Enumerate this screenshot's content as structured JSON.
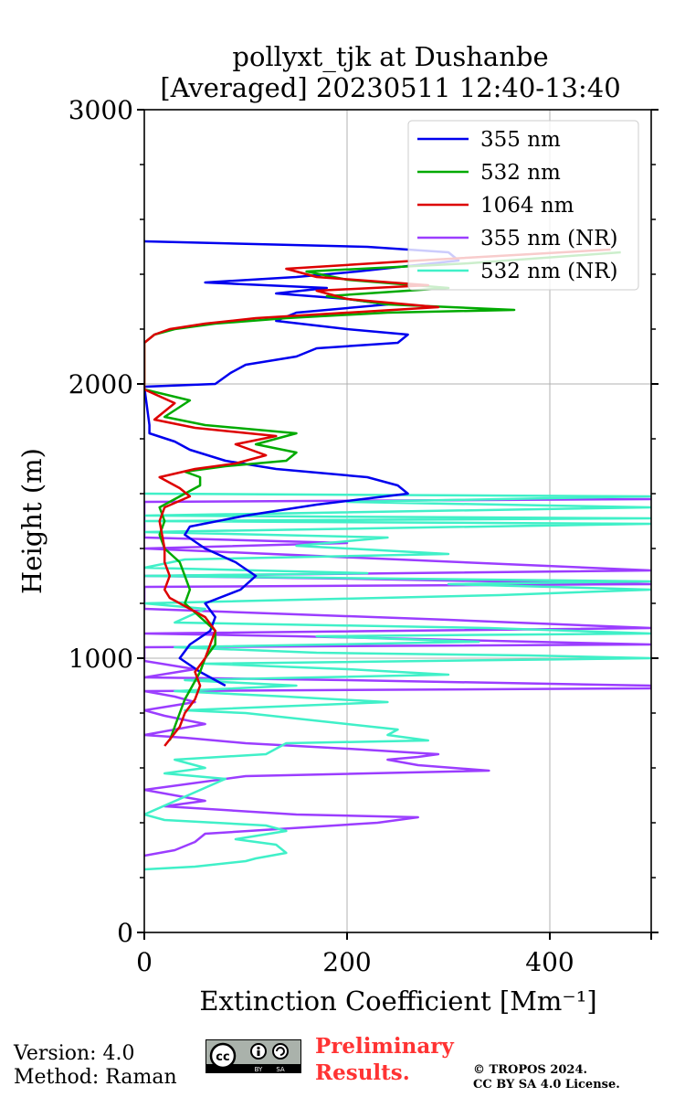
{
  "chart_data": {
    "type": "line",
    "title": "pollyxt_tjk at Dushanbe\n[Averaged] 20230511 12:40-13:40",
    "title_lines": [
      "pollyxt_tjk at Dushanbe",
      "[Averaged] 20230511 12:40-13:40"
    ],
    "xlabel": "Extinction Coefficient [Mm⁻¹]",
    "ylabel": "Height (m)",
    "xlim": [
      0,
      500
    ],
    "ylim": [
      0,
      3000
    ],
    "xticks": [
      0,
      200,
      400
    ],
    "yticks": [
      0,
      1000,
      2000,
      3000
    ],
    "grid": true,
    "legend_position": "top-right",
    "series": [
      {
        "name": "355 nm",
        "color": "#0000ee",
        "points": [
          [
            80,
            900
          ],
          [
            55,
            950
          ],
          [
            35,
            1000
          ],
          [
            45,
            1050
          ],
          [
            65,
            1100
          ],
          [
            70,
            1150
          ],
          [
            60,
            1200
          ],
          [
            95,
            1250
          ],
          [
            110,
            1300
          ],
          [
            90,
            1350
          ],
          [
            60,
            1400
          ],
          [
            40,
            1450
          ],
          [
            45,
            1480
          ],
          [
            100,
            1520
          ],
          [
            170,
            1560
          ],
          [
            215,
            1580
          ],
          [
            260,
            1600
          ],
          [
            250,
            1630
          ],
          [
            220,
            1660
          ],
          [
            130,
            1690
          ],
          [
            80,
            1720
          ],
          [
            45,
            1760
          ],
          [
            30,
            1790
          ],
          [
            5,
            1820
          ],
          [
            5,
            1850
          ],
          [
            0,
            1990
          ],
          [
            70,
            2000
          ],
          [
            85,
            2040
          ],
          [
            100,
            2070
          ],
          [
            150,
            2100
          ],
          [
            170,
            2130
          ],
          [
            250,
            2150
          ],
          [
            260,
            2180
          ],
          [
            200,
            2200
          ],
          [
            130,
            2230
          ],
          [
            150,
            2260
          ],
          [
            240,
            2290
          ],
          [
            200,
            2310
          ],
          [
            130,
            2330
          ],
          [
            180,
            2350
          ],
          [
            60,
            2370
          ],
          [
            150,
            2390
          ],
          [
            210,
            2410
          ],
          [
            310,
            2450
          ],
          [
            300,
            2480
          ],
          [
            220,
            2500
          ],
          [
            0,
            2520
          ]
        ]
      },
      {
        "name": "532 nm",
        "color": "#00aa00",
        "points": [
          [
            25,
            700
          ],
          [
            30,
            750
          ],
          [
            35,
            800
          ],
          [
            40,
            850
          ],
          [
            55,
            950
          ],
          [
            60,
            1000
          ],
          [
            70,
            1050
          ],
          [
            70,
            1100
          ],
          [
            55,
            1150
          ],
          [
            40,
            1200
          ],
          [
            45,
            1250
          ],
          [
            40,
            1300
          ],
          [
            35,
            1350
          ],
          [
            20,
            1400
          ],
          [
            15,
            1450
          ],
          [
            20,
            1500
          ],
          [
            15,
            1550
          ],
          [
            40,
            1600
          ],
          [
            55,
            1630
          ],
          [
            55,
            1660
          ],
          [
            40,
            1680
          ],
          [
            80,
            1700
          ],
          [
            140,
            1720
          ],
          [
            150,
            1750
          ],
          [
            110,
            1780
          ],
          [
            150,
            1820
          ],
          [
            60,
            1850
          ],
          [
            20,
            1880
          ],
          [
            45,
            1940
          ],
          [
            0,
            1980
          ],
          [
            0,
            2150
          ],
          [
            10,
            2180
          ],
          [
            30,
            2200
          ],
          [
            70,
            2220
          ],
          [
            140,
            2240
          ],
          [
            240,
            2260
          ],
          [
            365,
            2270
          ],
          [
            240,
            2290
          ],
          [
            180,
            2320
          ],
          [
            300,
            2350
          ],
          [
            200,
            2380
          ],
          [
            160,
            2410
          ],
          [
            320,
            2440
          ],
          [
            470,
            2480
          ]
        ]
      },
      {
        "name": "1064 nm",
        "color": "#dd0000",
        "points": [
          [
            20,
            680
          ],
          [
            35,
            750
          ],
          [
            40,
            800
          ],
          [
            50,
            850
          ],
          [
            55,
            900
          ],
          [
            50,
            950
          ],
          [
            60,
            1000
          ],
          [
            65,
            1050
          ],
          [
            70,
            1100
          ],
          [
            60,
            1150
          ],
          [
            45,
            1180
          ],
          [
            25,
            1220
          ],
          [
            20,
            1250
          ],
          [
            25,
            1300
          ],
          [
            20,
            1350
          ],
          [
            20,
            1400
          ],
          [
            15,
            1500
          ],
          [
            20,
            1550
          ],
          [
            45,
            1590
          ],
          [
            35,
            1620
          ],
          [
            15,
            1660
          ],
          [
            50,
            1690
          ],
          [
            90,
            1710
          ],
          [
            120,
            1740
          ],
          [
            90,
            1780
          ],
          [
            130,
            1810
          ],
          [
            50,
            1840
          ],
          [
            10,
            1870
          ],
          [
            30,
            1930
          ],
          [
            0,
            1980
          ],
          [
            0,
            2150
          ],
          [
            10,
            2180
          ],
          [
            25,
            2200
          ],
          [
            60,
            2220
          ],
          [
            110,
            2240
          ],
          [
            200,
            2260
          ],
          [
            290,
            2280
          ],
          [
            200,
            2310
          ],
          [
            170,
            2340
          ],
          [
            280,
            2360
          ],
          [
            170,
            2390
          ],
          [
            140,
            2420
          ],
          [
            270,
            2450
          ],
          [
            460,
            2490
          ]
        ]
      },
      {
        "name": "355 nm (NR)",
        "color": "#9b3dff",
        "points": [
          [
            0,
            280
          ],
          [
            30,
            300
          ],
          [
            50,
            330
          ],
          [
            60,
            360
          ],
          [
            230,
            400
          ],
          [
            270,
            420
          ],
          [
            150,
            430
          ],
          [
            20,
            460
          ],
          [
            60,
            480
          ],
          [
            30,
            500
          ],
          [
            0,
            520
          ],
          [
            100,
            570
          ],
          [
            340,
            590
          ],
          [
            270,
            610
          ],
          [
            240,
            630
          ],
          [
            270,
            640
          ],
          [
            290,
            650
          ],
          [
            200,
            670
          ],
          [
            100,
            690
          ],
          [
            40,
            710
          ],
          [
            0,
            720
          ],
          [
            60,
            760
          ],
          [
            20,
            790
          ],
          [
            0,
            810
          ],
          [
            50,
            840
          ],
          [
            30,
            860
          ],
          [
            0,
            880
          ],
          [
            500,
            890
          ],
          [
            500,
            900
          ],
          [
            200,
            920
          ],
          [
            0,
            930
          ],
          [
            50,
            960
          ],
          [
            0,
            990
          ],
          [
            0,
            1040
          ],
          [
            500,
            1050
          ],
          [
            150,
            1080
          ],
          [
            0,
            1090
          ],
          [
            500,
            1110
          ],
          [
            300,
            1140
          ],
          [
            0,
            1180
          ],
          [
            0,
            1260
          ],
          [
            500,
            1270
          ],
          [
            200,
            1290
          ],
          [
            0,
            1300
          ],
          [
            500,
            1320
          ],
          [
            0,
            1400
          ],
          [
            200,
            1420
          ],
          [
            0,
            1440
          ],
          [
            0,
            1570
          ],
          [
            500,
            1580
          ]
        ]
      },
      {
        "name": "532 nm (NR)",
        "color": "#40f0c8",
        "points": [
          [
            0,
            230
          ],
          [
            50,
            240
          ],
          [
            100,
            260
          ],
          [
            110,
            270
          ],
          [
            140,
            290
          ],
          [
            130,
            320
          ],
          [
            90,
            340
          ],
          [
            140,
            370
          ],
          [
            120,
            390
          ],
          [
            20,
            410
          ],
          [
            0,
            430
          ],
          [
            80,
            560
          ],
          [
            20,
            580
          ],
          [
            60,
            600
          ],
          [
            30,
            630
          ],
          [
            120,
            650
          ],
          [
            130,
            670
          ],
          [
            140,
            690
          ],
          [
            280,
            700
          ],
          [
            240,
            720
          ],
          [
            250,
            740
          ],
          [
            200,
            760
          ],
          [
            150,
            780
          ],
          [
            100,
            800
          ],
          [
            40,
            810
          ],
          [
            240,
            840
          ],
          [
            140,
            860
          ],
          [
            30,
            880
          ],
          [
            150,
            900
          ],
          [
            40,
            920
          ],
          [
            300,
            940
          ],
          [
            200,
            960
          ],
          [
            60,
            980
          ],
          [
            500,
            1000
          ],
          [
            380,
            1010
          ],
          [
            170,
            1020
          ],
          [
            30,
            1040
          ],
          [
            330,
            1060
          ],
          [
            170,
            1080
          ],
          [
            500,
            1090
          ],
          [
            340,
            1110
          ],
          [
            30,
            1130
          ],
          [
            60,
            1180
          ],
          [
            0,
            1200
          ],
          [
            350,
            1230
          ],
          [
            500,
            1250
          ],
          [
            300,
            1270
          ],
          [
            500,
            1280
          ],
          [
            0,
            1300
          ],
          [
            220,
            1310
          ],
          [
            0,
            1330
          ],
          [
            40,
            1360
          ],
          [
            300,
            1380
          ],
          [
            150,
            1410
          ],
          [
            240,
            1440
          ],
          [
            0,
            1460
          ],
          [
            500,
            1490
          ],
          [
            0,
            1500
          ],
          [
            500,
            1510
          ],
          [
            0,
            1520
          ],
          [
            500,
            1550
          ],
          [
            200,
            1570
          ],
          [
            500,
            1590
          ],
          [
            0,
            1600
          ]
        ]
      }
    ]
  },
  "footer": {
    "version": "Version: 4.0",
    "method": "Method: Raman",
    "preliminary_line1": "Preliminary",
    "preliminary_line2": "Results.",
    "copyright_line1": "© TROPOS 2024.",
    "copyright_line2": "CC BY SA 4.0 License.",
    "license_badge": {
      "cc": "cc",
      "by": "BY",
      "sa": "SA"
    }
  }
}
